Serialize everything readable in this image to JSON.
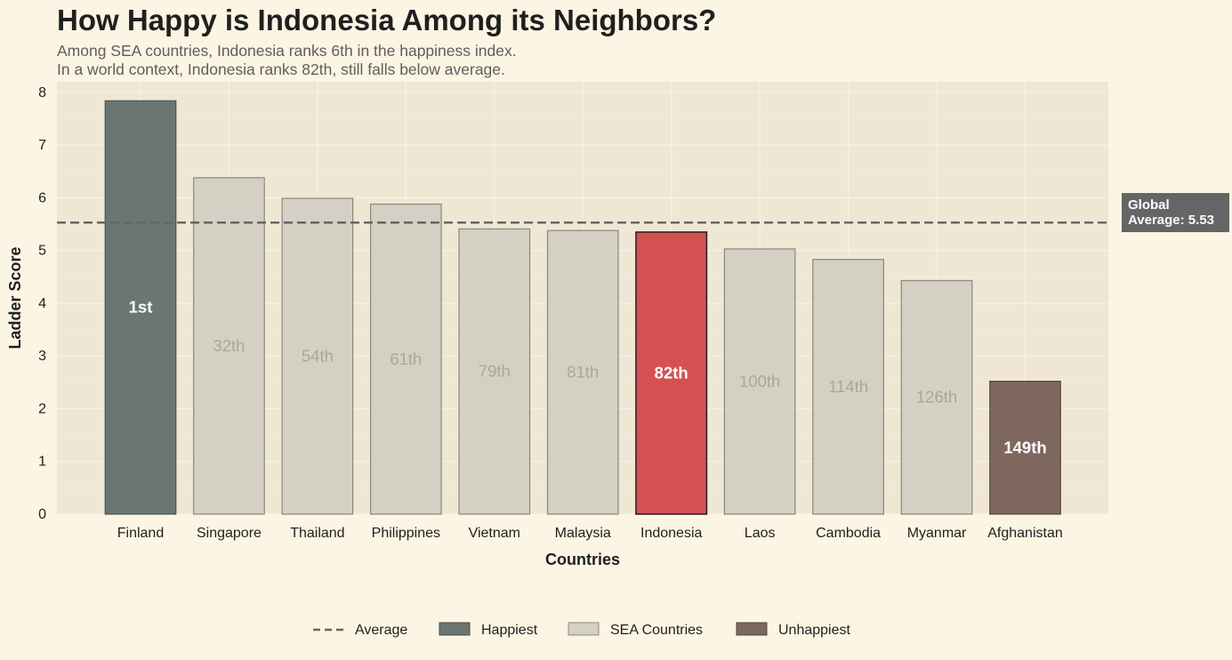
{
  "title": "How Happy is Indonesia Among its Neighbors?",
  "subtitle_line1": "Among SEA countries, Indonesia ranks 6th in the happiness index.",
  "subtitle_line2": "In a world context, Indonesia ranks 82th, still falls below average.",
  "colors": {
    "background": "#fcf5e3",
    "plot_background": "#efe7d4",
    "happiest": "#6b7673",
    "sea": "#d4d0c4",
    "highlight": "#d45151",
    "unhappiest": "#7e675e",
    "average_line": "#656565"
  },
  "average_label_line1": "Global",
  "average_label_line2": "Average: 5.53",
  "legend": {
    "average": "Average",
    "happiest": "Happiest",
    "sea": "SEA Countries",
    "unhappiest": "Unhappiest"
  },
  "chart_data": {
    "type": "bar",
    "title": "How Happy is Indonesia Among its Neighbors?",
    "xlabel": "Countries",
    "ylabel": "Ladder Score",
    "ylim": [
      0,
      8.2
    ],
    "yticks": [
      0,
      1,
      2,
      3,
      4,
      5,
      6,
      7,
      8
    ],
    "grid": true,
    "legend_position": "bottom",
    "average": 5.53,
    "categories": [
      "Finland",
      "Singapore",
      "Thailand",
      "Philippines",
      "Vietnam",
      "Malaysia",
      "Indonesia",
      "Laos",
      "Cambodia",
      "Myanmar",
      "Afghanistan"
    ],
    "values": [
      7.84,
      6.38,
      5.99,
      5.88,
      5.41,
      5.38,
      5.35,
      5.03,
      4.83,
      4.43,
      2.52
    ],
    "rank_labels": [
      "1st",
      "32th",
      "54th",
      "61th",
      "79th",
      "81th",
      "82th",
      "100th",
      "114th",
      "126th",
      "149th"
    ],
    "group": [
      "happiest",
      "sea",
      "sea",
      "sea",
      "sea",
      "sea",
      "highlight",
      "sea",
      "sea",
      "sea",
      "unhappiest"
    ]
  }
}
